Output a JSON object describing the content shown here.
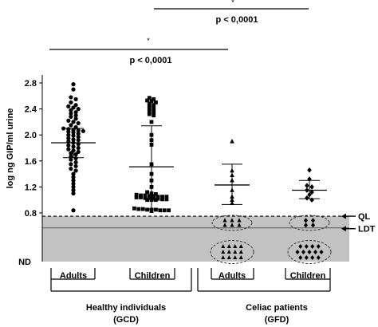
{
  "chart_data": {
    "type": "scatter",
    "ylabel": "log ng GIP/ml urine",
    "y_ticks": [
      "2.8",
      "2.4",
      "2.0",
      "1.6",
      "1.2",
      "0.8"
    ],
    "y_bottom_label": "ND",
    "ylim": [
      0.8,
      2.8
    ],
    "grid": false,
    "shaded_zone_below": 0.75,
    "limit_lines": [
      {
        "label": "QL",
        "value": 0.75,
        "style": "dashed"
      },
      {
        "label": "LDT",
        "value": 0.57,
        "style": "solid"
      }
    ],
    "comparisons": [
      {
        "label": "p <  0,0001",
        "star": "*",
        "groups": [
          "Adults",
          "Children"
        ]
      },
      {
        "label": "p <  0,0001",
        "star": "*",
        "groups": [
          "Adults",
          "Children"
        ]
      }
    ],
    "groups": [
      {
        "label": "Adults",
        "parent": "Healthy individuals",
        "marker": "circle",
        "mean": 1.88,
        "sd_low": 1.65,
        "sd_high": 2.1,
        "values": [
          2.78,
          2.7,
          2.58,
          2.55,
          2.5,
          2.46,
          2.44,
          2.42,
          2.4,
          2.38,
          2.35,
          2.33,
          2.3,
          2.28,
          2.25,
          2.22,
          2.2,
          2.18,
          2.15,
          2.12,
          2.1,
          2.09,
          2.08,
          2.07,
          2.06,
          2.05,
          2.04,
          2.02,
          2.0,
          1.99,
          1.97,
          1.95,
          1.93,
          1.92,
          1.9,
          1.88,
          1.86,
          1.84,
          1.82,
          1.8,
          1.78,
          1.76,
          1.74,
          1.72,
          1.7,
          1.67,
          1.64,
          1.62,
          1.58,
          1.55,
          1.52,
          1.48,
          1.45,
          1.4,
          1.35,
          1.3,
          1.25,
          1.2,
          1.15,
          1.1,
          0.84
        ]
      },
      {
        "label": "Children",
        "parent": "Healthy individuals",
        "marker": "square",
        "mean": 1.51,
        "sd_low": 0.86,
        "sd_high": 2.14,
        "values": [
          2.57,
          2.55,
          2.53,
          2.52,
          2.5,
          2.48,
          2.46,
          2.44,
          2.43,
          2.4,
          2.38,
          2.36,
          2.34,
          2.32,
          2.3,
          2.2,
          2.0,
          1.92,
          1.85,
          1.55,
          1.4,
          1.3,
          1.2,
          1.12,
          1.1,
          1.09,
          1.08,
          1.07,
          1.07,
          1.06,
          1.06,
          1.05,
          1.05,
          1.05,
          1.04,
          1.04,
          1.03,
          1.03,
          1.02,
          1.02,
          1.01,
          1.01,
          1.0,
          1.0,
          1.0,
          0.87,
          0.86,
          0.86,
          0.85,
          0.85,
          0.85,
          0.84,
          0.84,
          0.84,
          0.83
        ]
      },
      {
        "label": "Adults",
        "parent": "Celiac patients",
        "marker": "triangle",
        "mean": 1.23,
        "sd_low": 0.93,
        "sd_high": 1.55,
        "values": [
          1.9,
          1.45,
          1.38,
          1.3,
          1.15,
          1.05,
          1.0,
          0.95
        ],
        "below_ql_count": 6,
        "below_ldt_count": 12
      },
      {
        "label": "Children",
        "parent": "Celiac patients",
        "marker": "diamond",
        "mean": 1.15,
        "sd_low": 1.02,
        "sd_high": 1.3,
        "values": [
          1.46,
          1.32,
          1.22,
          1.2,
          1.15,
          1.12,
          1.08,
          1.03,
          1.0
        ],
        "below_ql_count": 4,
        "below_ldt_count": 13
      }
    ],
    "supergroups": [
      {
        "label": "Healthy individuals",
        "sublabel": "(GCD)"
      },
      {
        "label": "Celiac patients",
        "sublabel": "(GFD)"
      }
    ]
  }
}
